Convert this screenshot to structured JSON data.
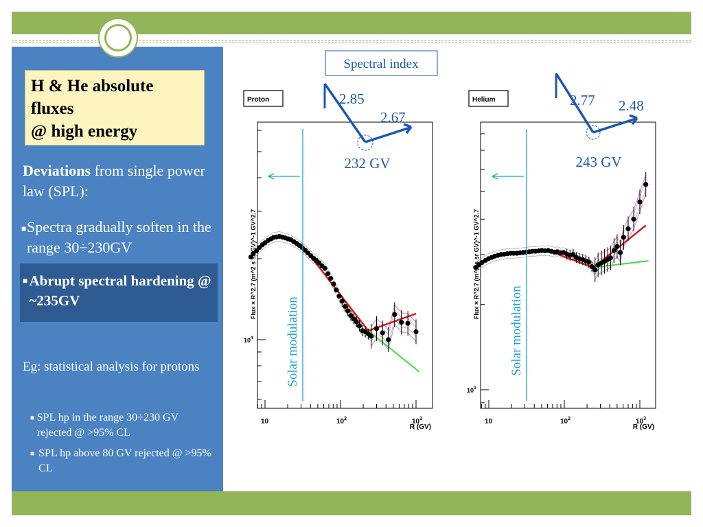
{
  "sidebar": {
    "title_lines": [
      "H & He absolute",
      "fluxes",
      "@ high energy"
    ],
    "deviations_bold": "Deviations",
    "deviations_rest": " from  single power law (SPL):",
    "bullet1": "Spectra gradually soften in the range 30÷230GV",
    "bullet2": "Abrupt  spectral hardening   @ ~235GV",
    "eg_text": "Eg: statistical analysis for protons",
    "sub_bullets": [
      "SPL hp in the range 30÷230 GV rejected @ >95% CL",
      "SPL  hp above 80 GV rejected @ >95% CL"
    ]
  },
  "annotations": {
    "spectral_index_label": "Spectral index",
    "proton_index_low": "2.85",
    "proton_index_high": "2.67",
    "proton_break": "232 GV",
    "helium_index_low": "2.77",
    "helium_index_high": "2.48",
    "helium_break": "243 GV",
    "solar_modulation": "Solar modulation"
  },
  "colors": {
    "accent_green": "#94b45a",
    "sidebar_blue": "#4a82c2",
    "annotation_blue": "#1a57b5",
    "solar_cyan": "#1aa3d6",
    "fit_red": "#d42020",
    "fit_green": "#3ddc3d"
  },
  "chart_data": [
    {
      "type": "scatter",
      "title": "Proton",
      "xlabel": "R (GV)",
      "ylabel": "Flux × R^2.7 (m^2 s sr GV)^-1 GV^2.7",
      "x_scale": "log",
      "y_scale": "log",
      "x_tick_labels": [
        "10",
        "10^2",
        "10^3"
      ],
      "y_tick_labels": [
        "10^4"
      ],
      "x": [
        6.5,
        7,
        7.7,
        8.4,
        9.2,
        10,
        11,
        12,
        13,
        14.2,
        15.5,
        17,
        18.5,
        20.2,
        22,
        24,
        26.2,
        28.6,
        31.2,
        34,
        37,
        40.5,
        44,
        48,
        52,
        57,
        62,
        68,
        74,
        81,
        88,
        96,
        105,
        115,
        125,
        137,
        150,
        163,
        178,
        195,
        213,
        233,
        255,
        300,
        360,
        430,
        520,
        640,
        780,
        1000
      ],
      "y": [
        20300,
        20900,
        21400,
        22000,
        22500,
        22900,
        23400,
        23700,
        24000,
        24100,
        24200,
        24050,
        23900,
        23700,
        23500,
        23150,
        22800,
        22400,
        21950,
        21500,
        21000,
        20500,
        20050,
        19700,
        19300,
        18800,
        18400,
        17600,
        16900,
        16100,
        15300,
        14500,
        13900,
        13300,
        12800,
        12300,
        11950,
        11650,
        11250,
        10800,
        10700,
        10500,
        10300,
        11000,
        10600,
        10000,
        12400,
        11600,
        11500,
        10700
      ],
      "fits": [
        {
          "color": "red",
          "x": [
            30,
            233
          ],
          "y": [
            22700,
            10800
          ]
        },
        {
          "color": "red",
          "x": [
            233,
            1000
          ],
          "y": [
            10800,
            12500
          ]
        },
        {
          "color": "green",
          "x": [
            233,
            1100
          ],
          "y": [
            10800,
            7600
          ]
        }
      ]
    },
    {
      "type": "scatter",
      "title": "Helium",
      "xlabel": "R (GV)",
      "ylabel": "Flux × R^2.7 (m^2 s sr GV)^-1 GV^2.7",
      "x_scale": "log",
      "y_scale": "log",
      "x_tick_labels": [
        "10",
        "10^2",
        "10^3"
      ],
      "y_tick_labels": [
        "10^3"
      ],
      "x": [
        6.7,
        7.4,
        8.1,
        9,
        9.9,
        10.9,
        12,
        13.2,
        14.5,
        16,
        17.6,
        19.4,
        21.3,
        23.5,
        25.8,
        28.4,
        31.2,
        34.4,
        37.8,
        41.6,
        45.8,
        50.3,
        55.4,
        61,
        67,
        74,
        81,
        89,
        98,
        108,
        119,
        131,
        144,
        158,
        175,
        192,
        211,
        232,
        255,
        280,
        310,
        340,
        375,
        410,
        455,
        500,
        550,
        610,
        700,
        830,
        1000,
        1200
      ],
      "y": [
        2700,
        2760,
        2810,
        2860,
        2900,
        2930,
        2960,
        2980,
        3000,
        3010,
        3020,
        3030,
        3030,
        3030,
        3040,
        3050,
        3060,
        3070,
        3080,
        3080,
        3090,
        3100,
        3090,
        3100,
        3080,
        3060,
        3070,
        3040,
        3050,
        3010,
        2980,
        3000,
        2930,
        2900,
        2880,
        2850,
        2820,
        2720,
        2650,
        2760,
        2800,
        2840,
        2880,
        2920,
        3100,
        3200,
        3050,
        3450,
        3700,
        4000,
        4600,
        5300
      ],
      "fits": [
        {
          "color": "red",
          "x": [
            60,
            243
          ],
          "y": [
            3100,
            2700
          ]
        },
        {
          "color": "red",
          "x": [
            243,
            1200
          ],
          "y": [
            2700,
            3800
          ]
        },
        {
          "color": "green",
          "x": [
            243,
            1300
          ],
          "y": [
            2700,
            2850
          ]
        }
      ]
    }
  ]
}
